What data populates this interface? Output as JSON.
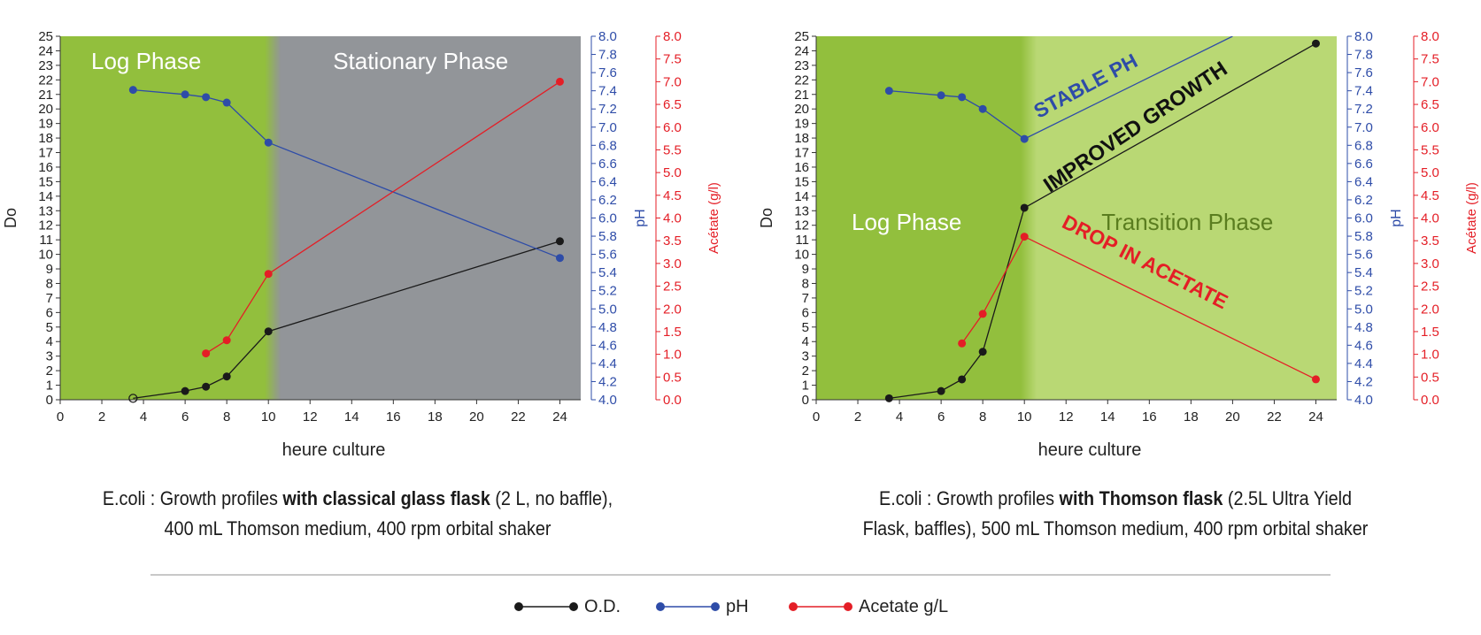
{
  "chart_data": [
    {
      "type": "line",
      "x": {
        "label": "heure culture",
        "range": [
          0,
          25
        ],
        "ticks": [
          0,
          2,
          4,
          6,
          8,
          10,
          12,
          14,
          16,
          18,
          20,
          22,
          24
        ]
      },
      "y_left": {
        "label": "Do",
        "range": [
          0,
          25
        ],
        "ticks": [
          0,
          1,
          2,
          3,
          4,
          5,
          6,
          7,
          8,
          9,
          10,
          11,
          12,
          13,
          14,
          15,
          16,
          17,
          18,
          19,
          20,
          21,
          22,
          23,
          24,
          25
        ]
      },
      "y_right1": {
        "label": "pH",
        "range": [
          4.0,
          8.0
        ],
        "ticks": [
          "4.0",
          "4.2",
          "4.4",
          "4.6",
          "4.8",
          "5.0",
          "5.2",
          "5.4",
          "5.6",
          "5.8",
          "6.0",
          "6.2",
          "6.4",
          "6.6",
          "6.8",
          "7.0",
          "7.2",
          "7.4",
          "7.6",
          "7.8",
          "8.0"
        ]
      },
      "y_right2": {
        "label": "Acétate (g/l)",
        "range": [
          0.0,
          8.0
        ],
        "ticks": [
          "0.0",
          "0.5",
          "1.0",
          "1.5",
          "2.0",
          "2.5",
          "3.0",
          "3.5",
          "4.0",
          "4.5",
          "5.0",
          "5.5",
          "6.0",
          "6.5",
          "7.0",
          "7.5",
          "8.0"
        ]
      },
      "phases": [
        {
          "label": "Log Phase",
          "from": 0,
          "to": 10,
          "color": "#92bf3d"
        },
        {
          "label": "Stationary Phase",
          "from": 10,
          "to": 25,
          "color": "#929599"
        }
      ],
      "series": [
        {
          "name": "O.D.",
          "axis": "left",
          "color": "#1a1a1a",
          "x": [
            3.5,
            6,
            7,
            8,
            10,
            24
          ],
          "y": [
            0.1,
            0.6,
            0.9,
            1.6,
            4.7,
            10.9
          ],
          "first_point_open": true
        },
        {
          "name": "pH",
          "axis": "right1",
          "color": "#2e4ca8",
          "x": [
            3.5,
            6,
            7,
            8,
            10,
            24
          ],
          "y": [
            7.41,
            7.36,
            7.33,
            7.27,
            6.83,
            5.56
          ]
        },
        {
          "name": "Acetate g/L",
          "axis": "right2",
          "color": "#e41e26",
          "x": [
            7,
            8,
            10,
            24
          ],
          "y": [
            1.02,
            1.31,
            2.77,
            7.0
          ]
        }
      ],
      "annotations": []
    },
    {
      "type": "line",
      "x": {
        "label": "heure culture",
        "range": [
          0,
          25
        ],
        "ticks": [
          0,
          2,
          4,
          6,
          8,
          10,
          12,
          14,
          16,
          18,
          20,
          22,
          24
        ]
      },
      "y_left": {
        "label": "Do",
        "range": [
          0,
          25
        ],
        "ticks": [
          0,
          1,
          2,
          3,
          4,
          5,
          6,
          7,
          8,
          9,
          10,
          11,
          12,
          13,
          14,
          15,
          16,
          17,
          18,
          19,
          20,
          21,
          22,
          23,
          24,
          25
        ]
      },
      "y_right1": {
        "label": "pH",
        "range": [
          4.0,
          8.0
        ],
        "ticks": [
          "4.0",
          "4.2",
          "4.4",
          "4.6",
          "4.8",
          "5.0",
          "5.2",
          "5.4",
          "5.6",
          "5.8",
          "6.0",
          "6.2",
          "6.4",
          "6.6",
          "6.8",
          "7.0",
          "7.2",
          "7.4",
          "7.6",
          "7.8",
          "8.0"
        ]
      },
      "y_right2": {
        "label": "Acétate (g/l)",
        "range": [
          0.0,
          8.0
        ],
        "ticks": [
          "0.0",
          "0.5",
          "1.0",
          "1.5",
          "2.0",
          "2.5",
          "3.0",
          "3.5",
          "4.0",
          "4.5",
          "5.0",
          "5.5",
          "6.0",
          "6.5",
          "7.0",
          "7.5",
          "8.0"
        ]
      },
      "phases": [
        {
          "label": "Log Phase",
          "from": 0,
          "to": 10,
          "color": "#92bf3d"
        },
        {
          "label": "Transition Phase",
          "from": 10,
          "to": 25,
          "color": "#b9d874"
        }
      ],
      "series": [
        {
          "name": "O.D.",
          "axis": "left",
          "color": "#1a1a1a",
          "x": [
            3.5,
            6,
            7,
            8,
            10,
            24
          ],
          "y": [
            0.1,
            0.6,
            1.4,
            3.3,
            13.2,
            24.5
          ]
        },
        {
          "name": "pH",
          "axis": "right1",
          "color": "#2e4ca8",
          "x": [
            3.5,
            6,
            7,
            8,
            10,
            20
          ],
          "y": [
            7.4,
            7.35,
            7.33,
            7.2,
            6.87,
            8.0
          ]
        },
        {
          "name": "Acetate g/L",
          "axis": "right2",
          "color": "#e41e26",
          "x": [
            7,
            8,
            10,
            24
          ],
          "y": [
            1.24,
            1.89,
            3.59,
            0.45
          ]
        }
      ],
      "annotations": [
        {
          "text": "STABLE PH",
          "color": "#2e4ca8"
        },
        {
          "text": "IMPROVED GROWTH",
          "color": "#111111"
        },
        {
          "text": "DROP IN ACETATE",
          "color": "#e41e26"
        }
      ]
    }
  ],
  "captions": [
    {
      "line1_pre": "E.coli : Growth profiles ",
      "line1_bold": "with classical glass flask",
      "line1_post": " (2 L,  no baffle),",
      "line2": "400 mL Thomson medium, 400 rpm orbital shaker"
    },
    {
      "line1_pre": "E.coli : Growth profiles ",
      "line1_bold": "with Thomson flask",
      "line1_post": " (2.5L Ultra Yield",
      "line2": "Flask, baffles), 500 mL Thomson medium, 400 rpm orbital shaker"
    }
  ],
  "legend": [
    {
      "label": "O.D.",
      "color": "#1a1a1a"
    },
    {
      "label": "pH",
      "color": "#2e4ca8"
    },
    {
      "label": "Acetate g/L",
      "color": "#e41e26"
    }
  ]
}
